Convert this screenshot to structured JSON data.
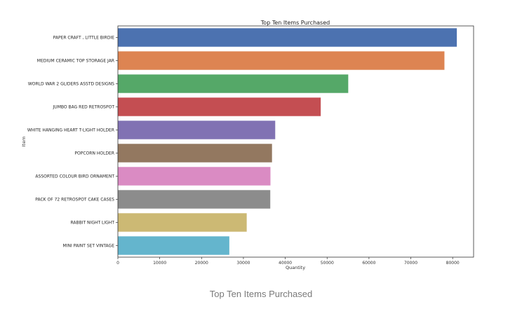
{
  "caption": "Top Ten Items Purchased",
  "chart_data": {
    "type": "bar",
    "orientation": "horizontal",
    "title": "Top Ten Items Purchased",
    "xlabel": "Quantity",
    "ylabel": "Item",
    "xlim": [
      0,
      85000
    ],
    "xticks": [
      0,
      10000,
      20000,
      30000,
      40000,
      50000,
      60000,
      70000,
      80000
    ],
    "grid": false,
    "categories": [
      "PAPER CRAFT , LITTLE BIRDIE",
      "MEDIUM CERAMIC TOP STORAGE JAR",
      "WORLD WAR 2 GLIDERS ASSTD DESIGNS",
      "JUMBO BAG RED RETROSPOT",
      "WHITE HANGING HEART T-LIGHT HOLDER",
      "POPCORN HOLDER",
      "ASSORTED COLOUR BIRD ORNAMENT",
      "PACK OF 72 RETROSPOT CAKE CASES",
      "RABBIT NIGHT LIGHT",
      "MINI PAINT SET VINTAGE"
    ],
    "values": [
      80995,
      78033,
      55047,
      48474,
      37599,
      36831,
      36461,
      36419,
      30788,
      26633
    ],
    "colors": [
      "#4c72b0",
      "#dd8452",
      "#55a868",
      "#c44e52",
      "#8172b3",
      "#937860",
      "#da8bc3",
      "#8c8c8c",
      "#ccb974",
      "#64b5cd"
    ]
  }
}
